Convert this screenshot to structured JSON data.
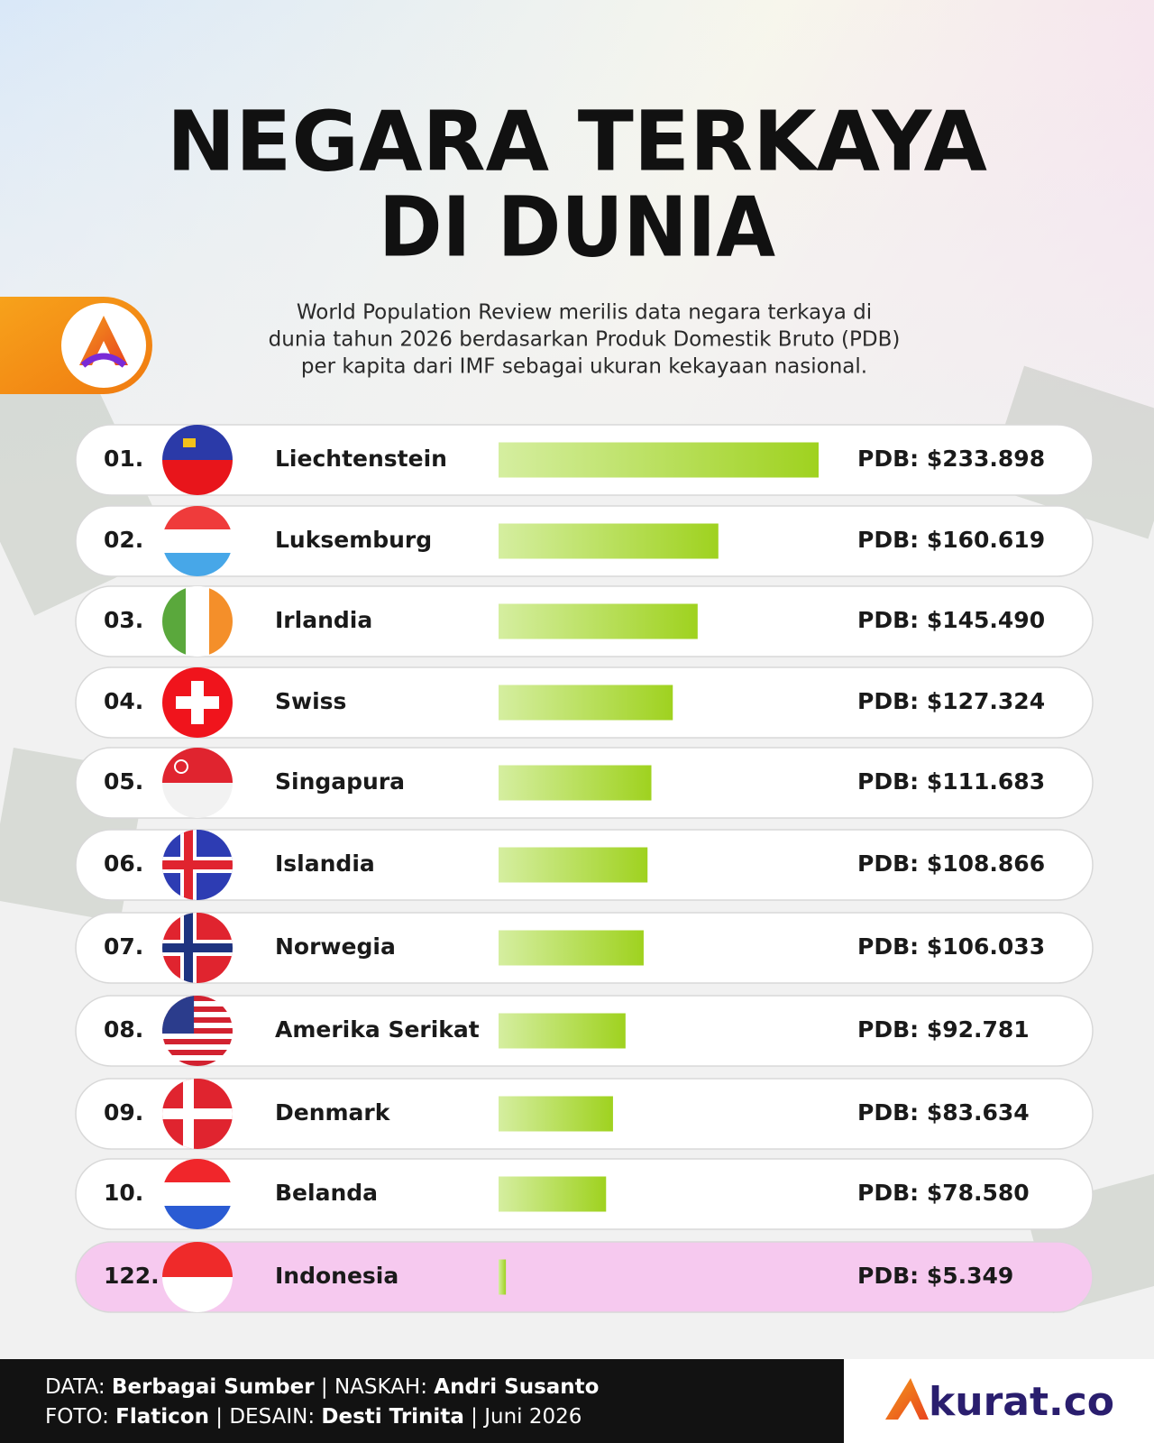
{
  "title": [
    "NEGARA TERKAYA",
    "DI DUNIA"
  ],
  "subtitle": [
    "World Population Review merilis data negara terkaya di",
    "dunia tahun 2026 berdasarkan Produk Domestik Bruto (PDB)",
    "per kapita dari IMF sebagai ukuran kekayaan nasional."
  ],
  "chart_data": {
    "type": "bar",
    "orientation": "horizontal",
    "ranks": [
      "01.",
      "02.",
      "03.",
      "04.",
      "05.",
      "06.",
      "07.",
      "08.",
      "09.",
      "10.",
      "122."
    ],
    "categories": [
      "Liechtenstein",
      "Luksemburg",
      "Irlandia",
      "Swiss",
      "Singapura",
      "Islandia",
      "Norwegia",
      "Amerika Serikat",
      "Denmark",
      "Belanda",
      "Indonesia"
    ],
    "values": [
      233898,
      160619,
      145490,
      127324,
      111683,
      108866,
      106033,
      92781,
      83634,
      78580,
      5349
    ],
    "value_labels": [
      "PDB: $233.898",
      "PDB: $160.619",
      "PDB: $145.490",
      "PDB: $127.324",
      "PDB: $111.683",
      "PDB: $108.866",
      "PDB: $106.033",
      "PDB: $92.781",
      "PDB: $83.634",
      "PDB: $78.580",
      "PDB: $5.349"
    ],
    "color": "#9fd21f",
    "row_colors": [
      "#ffffff",
      "#ffffff",
      "#ffffff",
      "#ffffff",
      "#ffffff",
      "#ffffff",
      "#ffffff",
      "#ffffff",
      "#ffffff",
      "#ffffff",
      "#f6c9ef"
    ]
  },
  "footer": {
    "line1": [
      "DATA:",
      "Berbagai Sumber",
      "|",
      "NASKAH:",
      "Andri Susanto"
    ],
    "line2": [
      "FOTO:",
      "Flaticon",
      "|",
      "DESAIN:",
      "Desti Trinita",
      "|",
      "Juni 2026"
    ]
  },
  "logo": "kurat.co"
}
